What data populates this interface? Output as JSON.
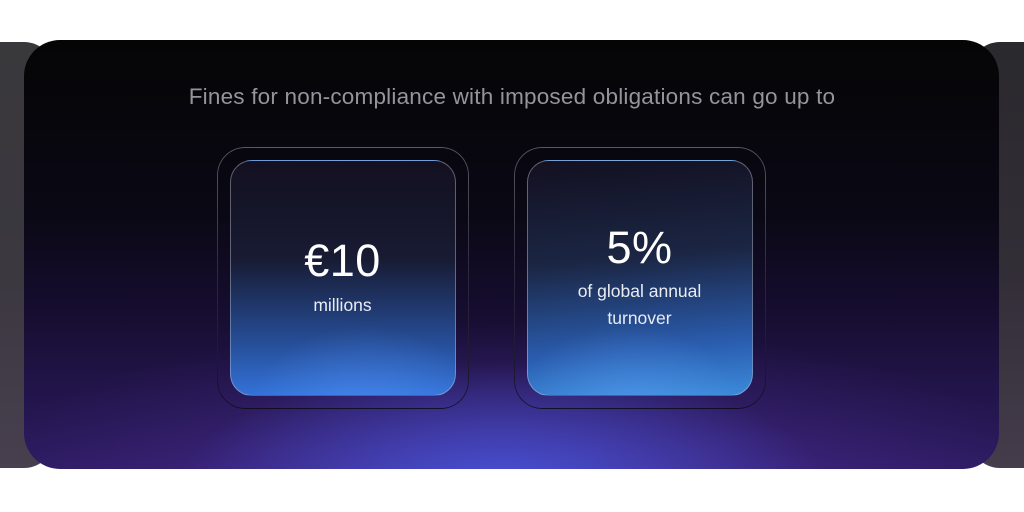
{
  "slide": {
    "heading": "Fines for non-compliance with imposed obligations can go up to",
    "stats": [
      {
        "value": "€10",
        "label": "millions"
      },
      {
        "value": "5%",
        "label": "of global annual turnover"
      }
    ]
  },
  "colors": {
    "background": "#ffffff",
    "heading_text": "#94949b",
    "stat_text": "#ffffff",
    "stat_label_text": "#e9ecf3",
    "card_blue": "#3372d8",
    "glow_blue": "#485ce8",
    "panel_purple": "#2b1a5e",
    "peek_gray": "#3a393d"
  }
}
